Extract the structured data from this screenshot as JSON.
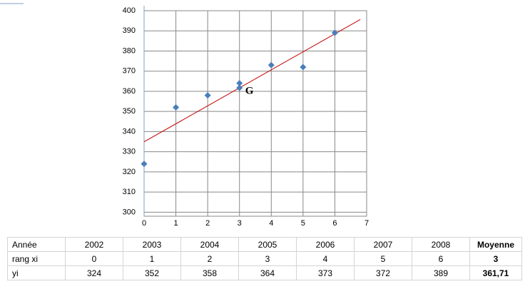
{
  "chart_data": {
    "type": "scatter",
    "x": [
      0,
      1,
      2,
      3,
      4,
      5,
      6
    ],
    "values": [
      324,
      352,
      358,
      364,
      373,
      372,
      389
    ],
    "color": "#4a7ebb",
    "trendline": {
      "x": [
        0,
        6.8
      ],
      "y": [
        334.93,
        395.65
      ],
      "color": "#c00000"
    },
    "annotations": [
      {
        "text": "G",
        "x": 3,
        "y": 361.71
      }
    ],
    "xlim": [
      0,
      7
    ],
    "xticks": [
      0,
      1,
      2,
      3,
      4,
      5,
      6,
      7
    ],
    "ylim": [
      298,
      400
    ],
    "yticks": [
      300,
      310,
      320,
      330,
      340,
      350,
      360,
      370,
      380,
      390,
      400
    ],
    "grid": true
  },
  "table": {
    "rows": [
      [
        "Année",
        "2002",
        "2003",
        "2004",
        "2005",
        "2006",
        "2007",
        "2008",
        "Moyenne"
      ],
      [
        "rang xi",
        "0",
        "1",
        "2",
        "3",
        "4",
        "5",
        "6",
        "3"
      ],
      [
        "yi",
        "324",
        "352",
        "358",
        "364",
        "373",
        "372",
        "389",
        "361,71"
      ]
    ]
  }
}
